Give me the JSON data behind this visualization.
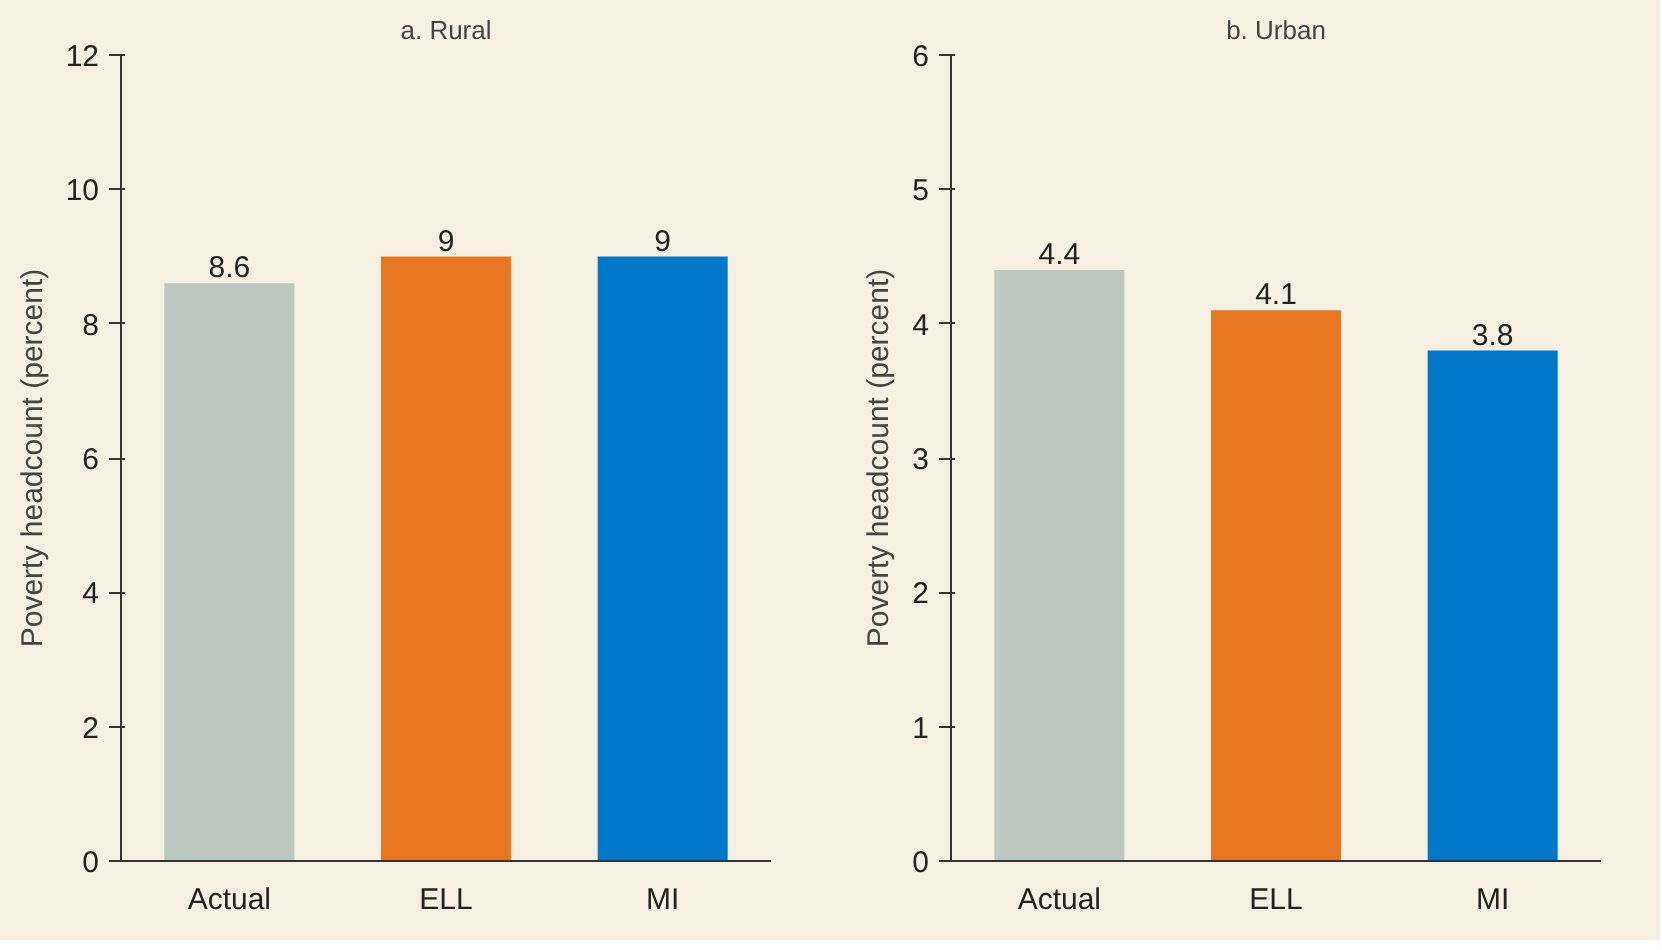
{
  "chart_data": [
    {
      "type": "bar",
      "title": "a. Rural",
      "ylabel": "Poverty headcount (percent)",
      "categories": [
        "Actual",
        "ELL",
        "MI"
      ],
      "values": [
        8.6,
        9,
        9
      ],
      "colors": [
        "#bcc8c0",
        "#e87722",
        "#0077c8"
      ],
      "ylim": [
        0,
        12
      ],
      "yticks": [
        0,
        2,
        4,
        6,
        8,
        10,
        12
      ],
      "data_labels": true,
      "grid": false
    },
    {
      "type": "bar",
      "title": "b. Urban",
      "ylabel": "Poverty headcount (percent)",
      "categories": [
        "Actual",
        "ELL",
        "MI"
      ],
      "values": [
        4.4,
        4.1,
        3.8
      ],
      "colors": [
        "#bcc8c0",
        "#e87722",
        "#0077c8"
      ],
      "ylim": [
        0,
        6
      ],
      "yticks": [
        0,
        1,
        2,
        3,
        4,
        5,
        6
      ],
      "data_labels": true,
      "grid": false
    }
  ]
}
